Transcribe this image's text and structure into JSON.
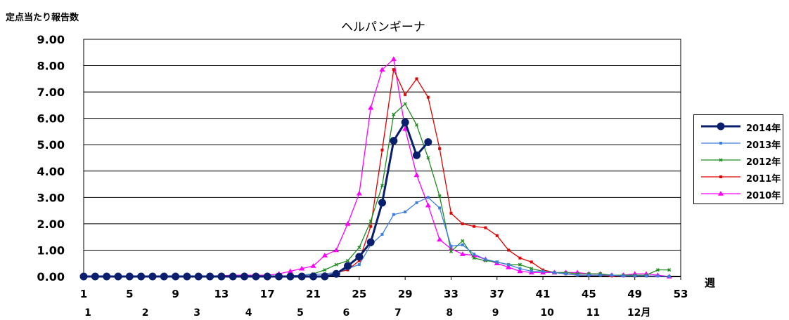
{
  "chart_data": {
    "type": "line",
    "title": "ヘルパンギーナ",
    "ylabel": "定点当たり報告数",
    "xlabel": "週",
    "ylim": [
      0,
      9
    ],
    "yticks": [
      "0.00",
      "1.00",
      "2.00",
      "3.00",
      "4.00",
      "5.00",
      "6.00",
      "7.00",
      "8.00",
      "9.00"
    ],
    "xlim": [
      1,
      53
    ],
    "week_ticks": [
      1,
      5,
      9,
      13,
      17,
      21,
      25,
      29,
      33,
      37,
      41,
      45,
      49,
      53
    ],
    "month_labels": [
      {
        "label": "1",
        "week": 1
      },
      {
        "label": "2",
        "week": 6
      },
      {
        "label": "3",
        "week": 10.5
      },
      {
        "label": "4",
        "week": 15
      },
      {
        "label": "5",
        "week": 19.5
      },
      {
        "label": "6",
        "week": 23.5
      },
      {
        "label": "7",
        "week": 28
      },
      {
        "label": "8",
        "week": 32.5
      },
      {
        "label": "9",
        "week": 36.5
      },
      {
        "label": "10",
        "week": 41
      },
      {
        "label": "11",
        "week": 45
      },
      {
        "label": "12月",
        "week": 49
      }
    ],
    "series": [
      {
        "name": "2014年",
        "color": "#0a1e6e",
        "marker": "circle",
        "width": 3,
        "x": [
          1,
          2,
          3,
          4,
          5,
          6,
          7,
          8,
          9,
          10,
          11,
          12,
          13,
          14,
          15,
          16,
          17,
          18,
          19,
          20,
          21,
          22,
          23,
          24,
          25,
          26,
          27,
          28,
          29,
          30,
          31
        ],
        "values": [
          0,
          0,
          0,
          0,
          0,
          0,
          0,
          0,
          0,
          0,
          0,
          0,
          0,
          0,
          0,
          0,
          0,
          0,
          0,
          0,
          0,
          0,
          0.1,
          0.4,
          0.75,
          1.3,
          2.8,
          5.15,
          5.85,
          4.6,
          5.1
        ]
      },
      {
        "name": "2013年",
        "color": "#3d7fe0",
        "marker": "square",
        "width": 1.3,
        "x": [
          1,
          2,
          3,
          4,
          5,
          6,
          7,
          8,
          9,
          10,
          11,
          12,
          13,
          14,
          15,
          16,
          17,
          18,
          19,
          20,
          21,
          22,
          23,
          24,
          25,
          26,
          27,
          28,
          29,
          30,
          31,
          32,
          33,
          34,
          35,
          36,
          37,
          38,
          39,
          40,
          41,
          42,
          43,
          44,
          45,
          46,
          47,
          48,
          49,
          50,
          51,
          52
        ],
        "values": [
          0,
          0,
          0,
          0,
          0,
          0,
          0,
          0,
          0,
          0,
          0,
          0,
          0,
          0,
          0,
          0,
          0,
          0,
          0.02,
          0.05,
          0.08,
          0.1,
          0.15,
          0.3,
          0.45,
          1.2,
          1.6,
          2.35,
          2.45,
          2.8,
          3.0,
          2.6,
          1.15,
          1.2,
          0.85,
          0.65,
          0.55,
          0.45,
          0.3,
          0.2,
          0.2,
          0.15,
          0.1,
          0.05,
          0.05,
          0.05,
          0.05,
          0.02,
          0.02,
          0.02,
          0.02,
          0
        ]
      },
      {
        "name": "2012年",
        "color": "#1e8c1e",
        "marker": "x",
        "width": 1.3,
        "x": [
          1,
          2,
          3,
          4,
          5,
          6,
          7,
          8,
          9,
          10,
          11,
          12,
          13,
          14,
          15,
          16,
          17,
          18,
          19,
          20,
          21,
          22,
          23,
          24,
          25,
          26,
          27,
          28,
          29,
          30,
          31,
          32,
          33,
          34,
          35,
          36,
          37,
          38,
          39,
          40,
          41,
          42,
          43,
          44,
          45,
          46,
          47,
          48,
          49,
          50,
          51,
          52
        ],
        "values": [
          0,
          0,
          0,
          0,
          0,
          0,
          0,
          0,
          0,
          0,
          0,
          0,
          0,
          0,
          0,
          0,
          0,
          0,
          0.02,
          0.05,
          0.1,
          0.25,
          0.45,
          0.6,
          1.1,
          2.1,
          3.45,
          6.15,
          6.55,
          5.75,
          4.5,
          3.05,
          0.95,
          1.35,
          0.7,
          0.6,
          0.55,
          0.45,
          0.45,
          0.3,
          0.2,
          0.15,
          0.15,
          0.1,
          0.1,
          0.1,
          0.05,
          0.05,
          0.05,
          0.05,
          0.25,
          0.25
        ]
      },
      {
        "name": "2011年",
        "color": "#e00000",
        "marker": "square",
        "width": 1.3,
        "x": [
          1,
          2,
          3,
          4,
          5,
          6,
          7,
          8,
          9,
          10,
          11,
          12,
          13,
          14,
          15,
          16,
          17,
          18,
          19,
          20,
          21,
          22,
          23,
          24,
          25,
          26,
          27,
          28,
          29,
          30,
          31,
          32,
          33,
          34,
          35,
          36,
          37,
          38,
          39,
          40,
          41,
          42,
          43,
          44,
          45,
          46,
          47,
          48,
          49,
          50,
          51,
          52
        ],
        "values": [
          0,
          0,
          0,
          0,
          0,
          0,
          0,
          0,
          0,
          0,
          0,
          0,
          0,
          0,
          0,
          0,
          0,
          0,
          0.02,
          0.05,
          0.08,
          0.1,
          0.15,
          0.25,
          0.6,
          1.9,
          4.8,
          7.85,
          6.9,
          7.5,
          6.8,
          4.85,
          2.4,
          2.0,
          1.9,
          1.85,
          1.55,
          1.0,
          0.7,
          0.55,
          0.25,
          0.15,
          0.1,
          0.05,
          0.05,
          0.05,
          0.02,
          0.02,
          0.02,
          0.02,
          0.02,
          0
        ]
      },
      {
        "name": "2010年",
        "color": "#ff00ff",
        "marker": "triangle",
        "width": 1.3,
        "x": [
          1,
          2,
          3,
          4,
          5,
          6,
          7,
          8,
          9,
          10,
          11,
          12,
          13,
          14,
          15,
          16,
          17,
          18,
          19,
          20,
          21,
          22,
          23,
          24,
          25,
          26,
          27,
          28,
          29,
          30,
          31,
          32,
          33,
          34,
          35,
          36,
          37,
          38,
          39,
          40,
          41,
          42,
          43,
          44,
          45,
          46,
          47,
          48,
          49,
          50,
          51,
          52
        ],
        "values": [
          0,
          0,
          0,
          0,
          0,
          0,
          0,
          0,
          0,
          0,
          0.02,
          0.02,
          0.03,
          0.05,
          0.05,
          0.05,
          0.05,
          0.1,
          0.2,
          0.3,
          0.4,
          0.8,
          1.0,
          2.0,
          3.15,
          6.4,
          7.85,
          8.25,
          5.6,
          3.85,
          2.7,
          1.4,
          1.05,
          0.85,
          0.8,
          0.65,
          0.5,
          0.35,
          0.2,
          0.15,
          0.15,
          0.15,
          0.15,
          0.15,
          0.1,
          0.1,
          0.05,
          0.05,
          0.1,
          0.1,
          0.05,
          0
        ]
      }
    ]
  }
}
